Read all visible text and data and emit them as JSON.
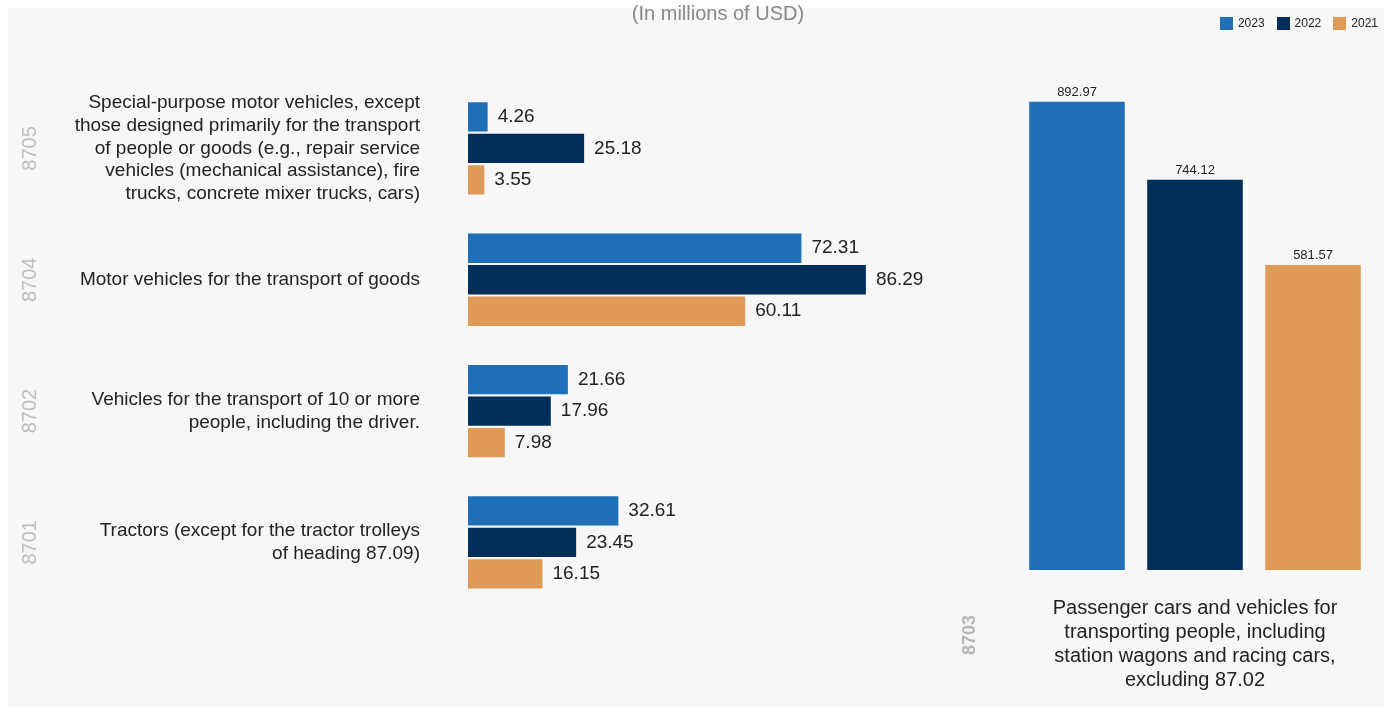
{
  "chart_data": [
    {
      "type": "bar",
      "orientation": "horizontal",
      "subtitle": "(In millions of USD)",
      "categories": [
        "Special-purpose motor vehicles, except those designed primarily for the transport of people or goods (e.g., repair service vehicles (mechanical assistance), fire trucks, concrete mixer trucks, cars)",
        "Motor vehicles for the transport of goods",
        "Vehicles for the transport of 10 or more people, including the driver.",
        "Tractors (except for the tractor trolleys of heading 87.09)"
      ],
      "annotations": [
        "8705",
        "8704",
        "8702",
        "8701"
      ],
      "series": [
        {
          "name": "2023",
          "color": "#1f70b8",
          "values": [
            4.26,
            72.31,
            21.66,
            32.61
          ]
        },
        {
          "name": "2022",
          "color": "#002e58",
          "values": [
            25.18,
            86.29,
            17.96,
            23.45
          ]
        },
        {
          "name": "2021",
          "color": "#e09a58",
          "values": [
            3.55,
            60.11,
            7.98,
            16.15
          ]
        }
      ],
      "tick_labels": "y",
      "data_labels": true,
      "legend": "top right"
    },
    {
      "type": "bar",
      "xlabel": "Passenger cars and vehicles for transporting people, including station wagons and racing cars, excluding 87.02",
      "categories": [
        null,
        null,
        null
      ],
      "annotations": [
        "8703"
      ],
      "values": [
        892.97,
        744.12,
        581.57
      ],
      "colors": [
        "#1f70b8",
        "#002e58",
        "#e09a58"
      ],
      "tick_labels": false,
      "data_labels": true
    }
  ]
}
